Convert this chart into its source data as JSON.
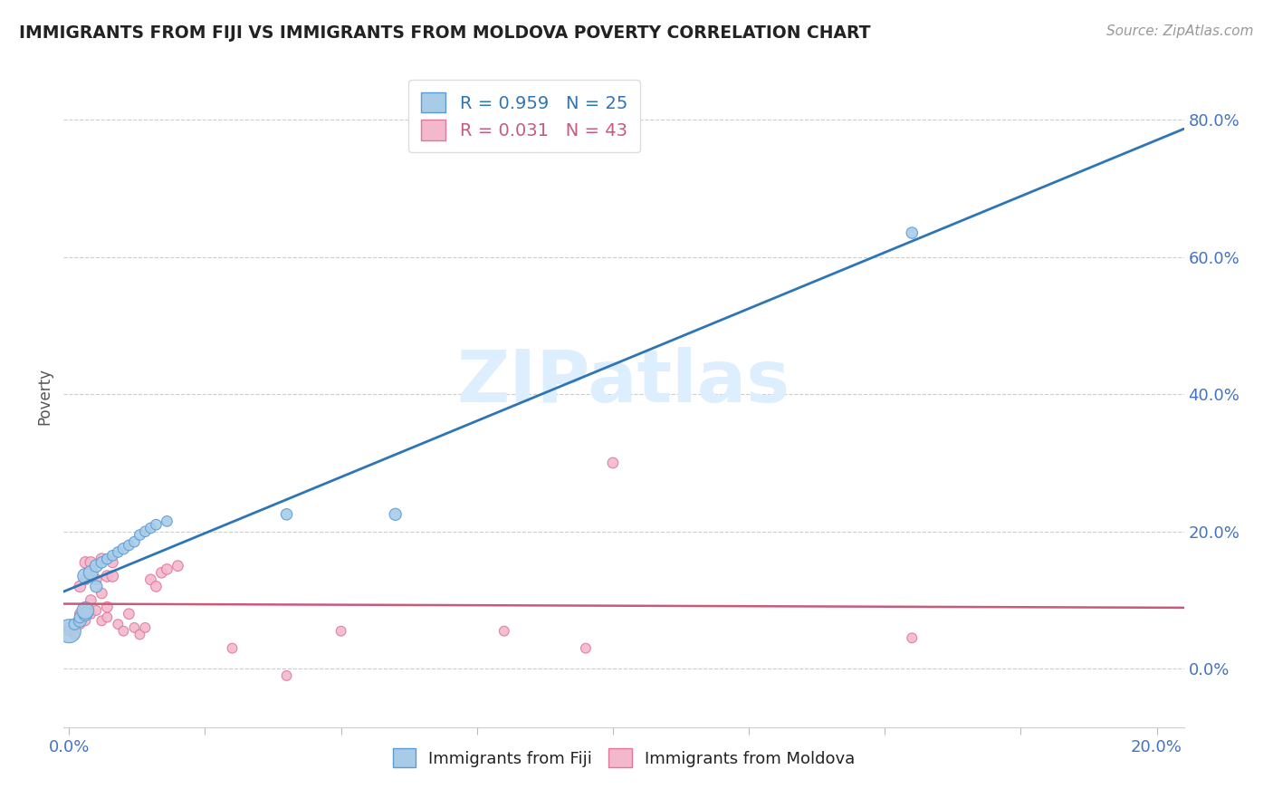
{
  "title": "IMMIGRANTS FROM FIJI VS IMMIGRANTS FROM MOLDOVA POVERTY CORRELATION CHART",
  "source": "Source: ZipAtlas.com",
  "ylabel": "Poverty",
  "yticks_labels": [
    "0.0%",
    "20.0%",
    "40.0%",
    "60.0%",
    "80.0%"
  ],
  "ytick_vals": [
    0.0,
    0.2,
    0.4,
    0.6,
    0.8
  ],
  "xlim": [
    -0.001,
    0.205
  ],
  "ylim": [
    -0.085,
    0.88
  ],
  "fiji_color": "#a8cce8",
  "fiji_edge_color": "#5b9bd5",
  "moldova_color": "#f4b8cc",
  "moldova_edge_color": "#e07898",
  "fiji_line_color": "#2e75b6",
  "moldova_line_color": "#c85a7a",
  "watermark_color": "#ddeeff",
  "watermark": "ZIPatlas",
  "fiji_R": 0.959,
  "fiji_N": 25,
  "moldova_R": 0.031,
  "moldova_N": 43,
  "fiji_points": [
    [
      0.0,
      0.055
    ],
    [
      0.001,
      0.065
    ],
    [
      0.002,
      0.07
    ],
    [
      0.002,
      0.075
    ],
    [
      0.003,
      0.08
    ],
    [
      0.003,
      0.085
    ],
    [
      0.003,
      0.135
    ],
    [
      0.004,
      0.14
    ],
    [
      0.005,
      0.12
    ],
    [
      0.005,
      0.15
    ],
    [
      0.006,
      0.155
    ],
    [
      0.007,
      0.16
    ],
    [
      0.008,
      0.165
    ],
    [
      0.009,
      0.17
    ],
    [
      0.01,
      0.175
    ],
    [
      0.011,
      0.18
    ],
    [
      0.012,
      0.185
    ],
    [
      0.013,
      0.195
    ],
    [
      0.014,
      0.2
    ],
    [
      0.015,
      0.205
    ],
    [
      0.016,
      0.21
    ],
    [
      0.018,
      0.215
    ],
    [
      0.04,
      0.225
    ],
    [
      0.06,
      0.225
    ],
    [
      0.155,
      0.635
    ]
  ],
  "fiji_sizes": [
    350,
    80,
    100,
    80,
    120,
    180,
    150,
    130,
    90,
    100,
    80,
    70,
    70,
    70,
    80,
    70,
    70,
    70,
    70,
    70,
    70,
    70,
    80,
    90,
    80
  ],
  "moldova_points": [
    [
      0.0,
      0.06
    ],
    [
      0.0,
      0.055
    ],
    [
      0.001,
      0.05
    ],
    [
      0.001,
      0.06
    ],
    [
      0.002,
      0.065
    ],
    [
      0.002,
      0.075
    ],
    [
      0.002,
      0.08
    ],
    [
      0.002,
      0.12
    ],
    [
      0.003,
      0.07
    ],
    [
      0.003,
      0.09
    ],
    [
      0.003,
      0.13
    ],
    [
      0.003,
      0.155
    ],
    [
      0.004,
      0.08
    ],
    [
      0.004,
      0.1
    ],
    [
      0.004,
      0.155
    ],
    [
      0.005,
      0.085
    ],
    [
      0.005,
      0.13
    ],
    [
      0.006,
      0.07
    ],
    [
      0.006,
      0.11
    ],
    [
      0.006,
      0.16
    ],
    [
      0.007,
      0.075
    ],
    [
      0.007,
      0.09
    ],
    [
      0.007,
      0.135
    ],
    [
      0.008,
      0.135
    ],
    [
      0.008,
      0.155
    ],
    [
      0.009,
      0.065
    ],
    [
      0.01,
      0.055
    ],
    [
      0.011,
      0.08
    ],
    [
      0.012,
      0.06
    ],
    [
      0.013,
      0.05
    ],
    [
      0.014,
      0.06
    ],
    [
      0.015,
      0.13
    ],
    [
      0.016,
      0.12
    ],
    [
      0.017,
      0.14
    ],
    [
      0.018,
      0.145
    ],
    [
      0.02,
      0.15
    ],
    [
      0.03,
      0.03
    ],
    [
      0.04,
      -0.01
    ],
    [
      0.05,
      0.055
    ],
    [
      0.08,
      0.055
    ],
    [
      0.095,
      0.03
    ],
    [
      0.1,
      0.3
    ],
    [
      0.155,
      0.045
    ]
  ],
  "moldova_sizes": [
    70,
    60,
    60,
    60,
    60,
    70,
    70,
    80,
    60,
    70,
    70,
    80,
    60,
    70,
    80,
    60,
    70,
    60,
    70,
    80,
    60,
    70,
    80,
    80,
    70,
    60,
    60,
    70,
    60,
    60,
    60,
    70,
    70,
    70,
    70,
    70,
    60,
    60,
    60,
    60,
    60,
    70,
    60
  ],
  "xtick_positions": [
    0.0,
    0.025,
    0.05,
    0.075,
    0.1,
    0.125,
    0.15,
    0.175,
    0.2
  ],
  "grid_ytick_vals": [
    0.0,
    0.2,
    0.4,
    0.6,
    0.8
  ],
  "legend_text_color_fiji": "#2e75b6",
  "legend_text_color_moldova": "#c85a7a"
}
